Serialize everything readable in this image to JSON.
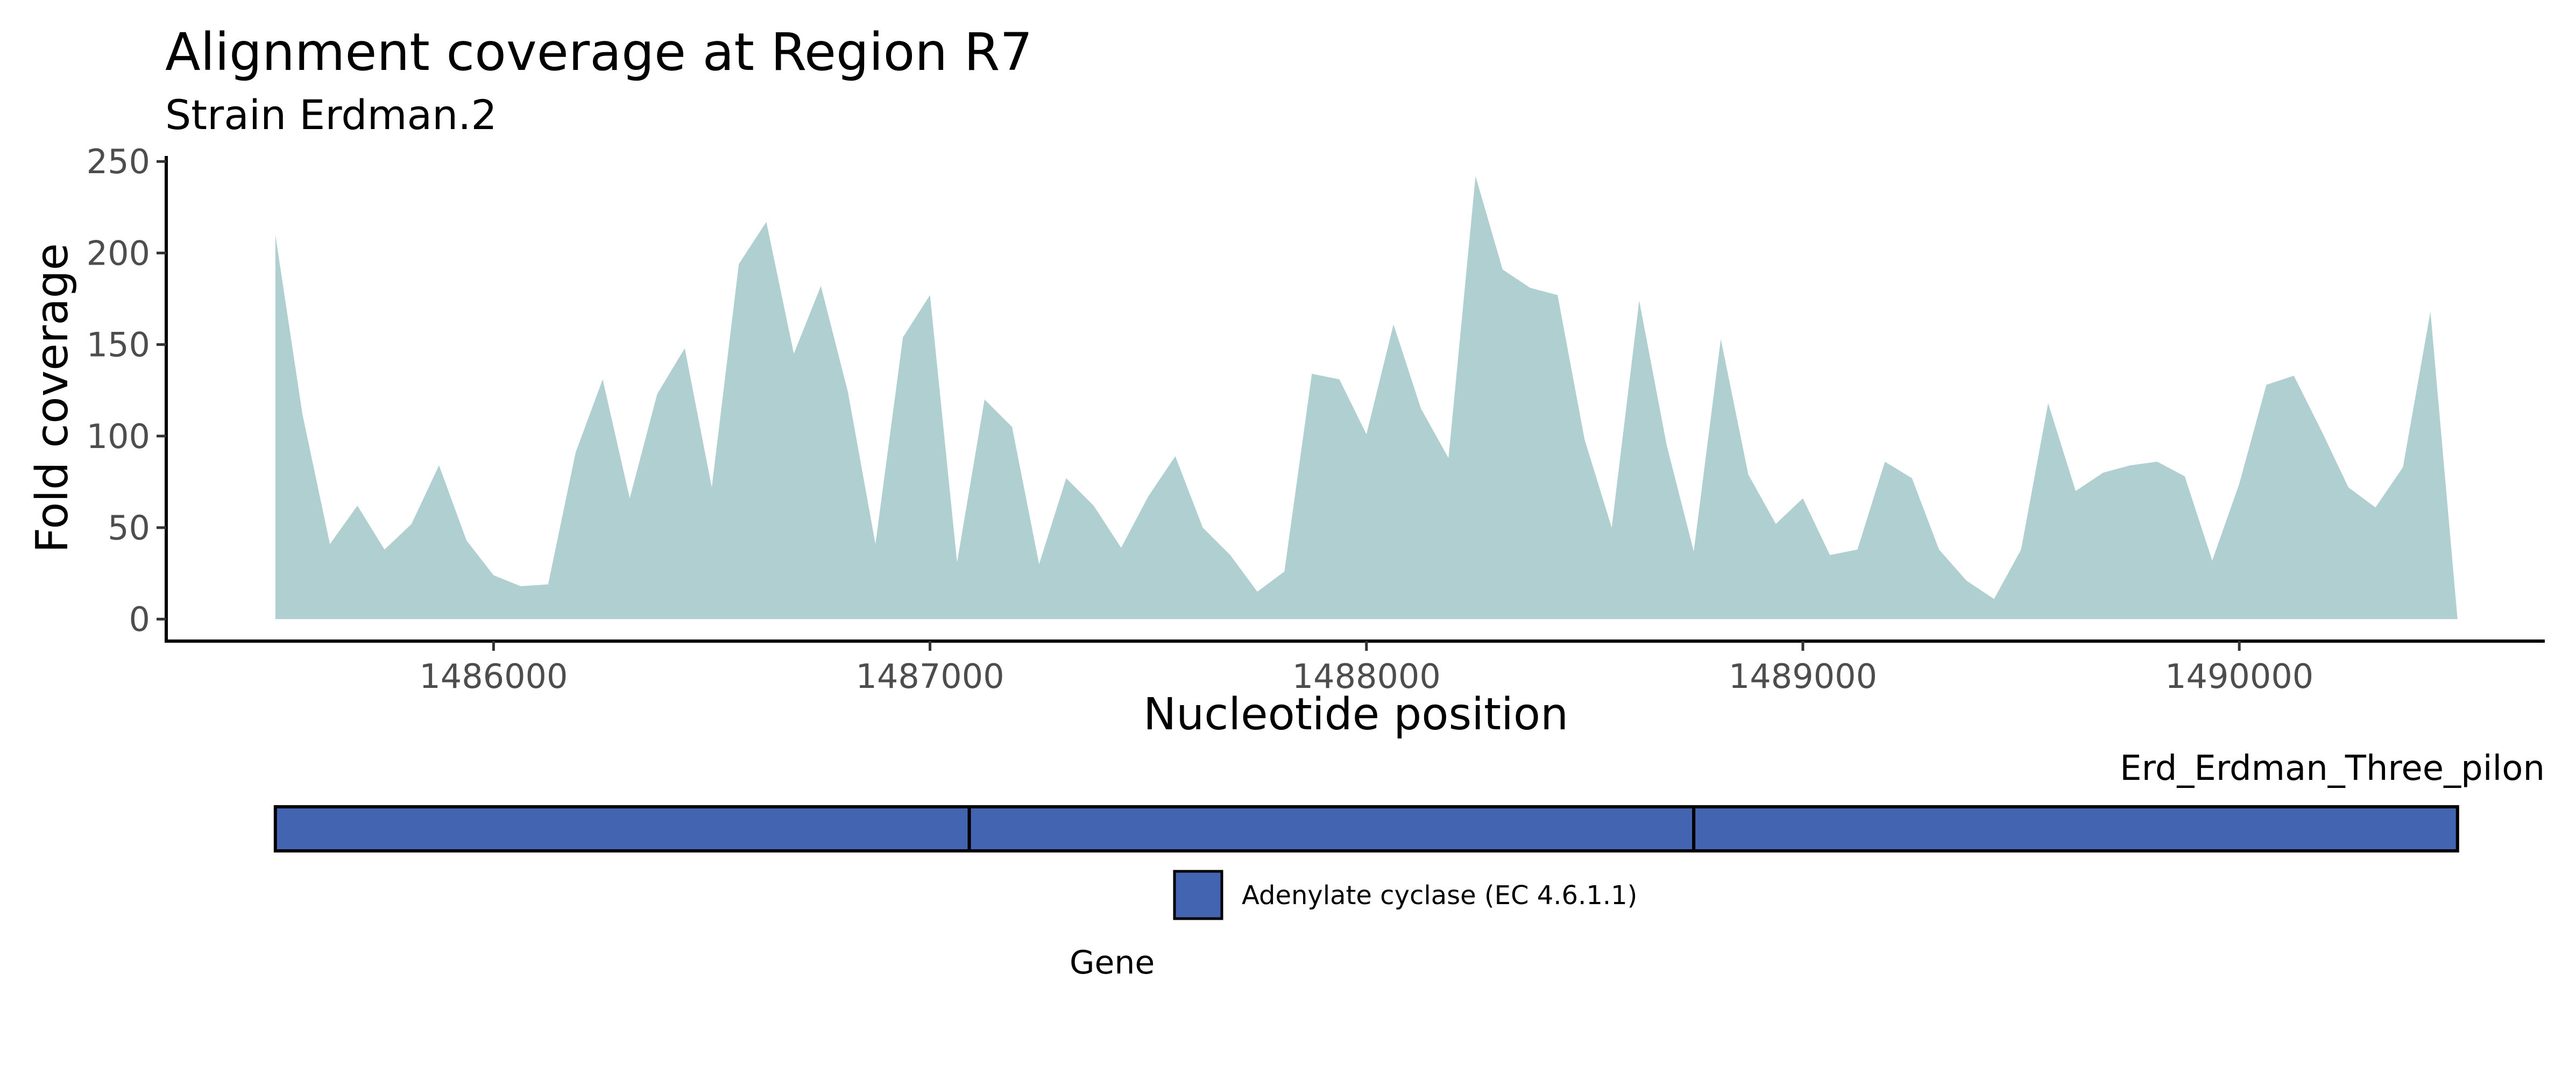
{
  "chart_data": {
    "type": "area",
    "title": "Alignment coverage at Region R7",
    "subtitle": "Strain Erdman.2",
    "xlabel": "Nucleotide position",
    "ylabel": "Fold coverage",
    "xlim": [
      1485250,
      1490700
    ],
    "ylim": [
      -12,
      253
    ],
    "x_ticks": [
      1486000,
      1487000,
      1488000,
      1489000,
      1490000
    ],
    "y_ticks": [
      0,
      50,
      100,
      150,
      200,
      250
    ],
    "grid": false,
    "fill_color": "#b0cfd1",
    "series": [
      {
        "x": [
          1485500,
          1485562,
          1485625,
          1485688,
          1485750,
          1485812,
          1485875,
          1485938,
          1486000,
          1486062,
          1486125,
          1486188,
          1486250,
          1486312,
          1486375,
          1486438,
          1486500,
          1486562,
          1486625,
          1486688,
          1486750,
          1486812,
          1486875,
          1486938,
          1487000,
          1487062,
          1487125,
          1487188,
          1487250,
          1487312,
          1487375,
          1487438,
          1487500,
          1487562,
          1487625,
          1487688,
          1487750,
          1487812,
          1487875,
          1487938,
          1488000,
          1488062,
          1488125,
          1488188,
          1488250,
          1488312,
          1488375,
          1488438,
          1488500,
          1488562,
          1488625,
          1488688,
          1488750,
          1488812,
          1488875,
          1488938,
          1489000,
          1489062,
          1489125,
          1489188,
          1489250,
          1489312,
          1489375,
          1489438,
          1489500,
          1489562,
          1489625,
          1489688,
          1489750,
          1489812,
          1489875,
          1489938,
          1490000,
          1490062,
          1490125,
          1490188,
          1490250,
          1490312,
          1490375,
          1490438,
          1490500
        ],
        "y": [
          210,
          112,
          41,
          62,
          38,
          52,
          84,
          43,
          24,
          18,
          19,
          91,
          131,
          66,
          123,
          148,
          72,
          194,
          217,
          145,
          182,
          124,
          41,
          154,
          177,
          31,
          120,
          105,
          30,
          77,
          62,
          39,
          67,
          89,
          50,
          35,
          15,
          26,
          134,
          131,
          101,
          161,
          115,
          88,
          242,
          191,
          181,
          177,
          98,
          50,
          174,
          95,
          37,
          153,
          79,
          52,
          66,
          35,
          38,
          86,
          77,
          38,
          21,
          11,
          38,
          118,
          70,
          80,
          84,
          86,
          78,
          32,
          74,
          128,
          133,
          103,
          72,
          61,
          83,
          168,
          0
        ]
      }
    ],
    "track": {
      "label": "Erd_Erdman_Three_pilon",
      "color": "#4364b0",
      "segments": [
        {
          "start": 1485500,
          "end": 1487090
        },
        {
          "start": 1487090,
          "end": 1488750
        },
        {
          "start": 1488750,
          "end": 1490500
        }
      ]
    },
    "legend": {
      "title": "Gene",
      "placement": "bottom-center",
      "entries": [
        {
          "label": "Adenylate cyclase (EC 4.6.1.1)",
          "color": "#4364b0"
        }
      ]
    }
  }
}
